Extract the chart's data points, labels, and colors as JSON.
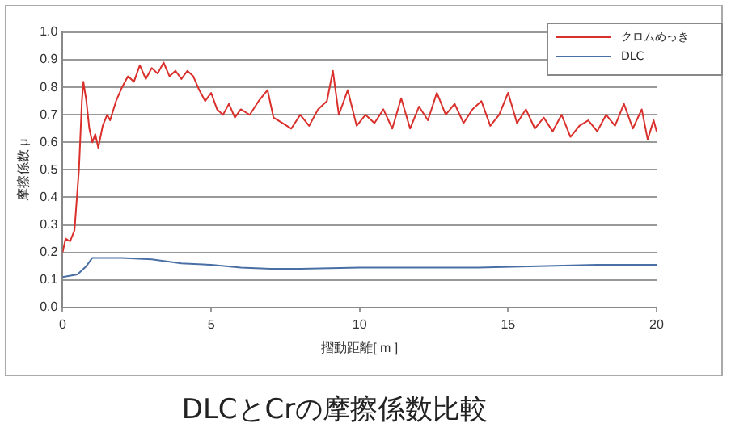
{
  "chart_data": {
    "type": "line",
    "title": "DLCとCrの摩擦係数比較",
    "xlabel": "摺動距離[ m ]",
    "ylabel": "摩擦係数 μ",
    "xlim": [
      0,
      20
    ],
    "xticks": [
      0,
      5,
      10,
      15,
      20
    ],
    "ylim": [
      0,
      1
    ],
    "yticks": [
      {
        "value": 0,
        "label": "0.0"
      },
      {
        "value": 0.1,
        "label": "0.1"
      },
      {
        "value": 0.2,
        "label": "0.2"
      },
      {
        "value": 0.3,
        "label": "0.3"
      },
      {
        "value": 0.4,
        "label": "0.4"
      },
      {
        "value": 0.5,
        "label": "0.5"
      },
      {
        "value": 0.6,
        "label": "0.6"
      },
      {
        "value": 0.7,
        "label": "0.7"
      },
      {
        "value": 0.8,
        "label": "0.8"
      },
      {
        "value": 0.9,
        "label": "0.9"
      },
      {
        "value": 1,
        "label": "1.0"
      }
    ],
    "grid": "y",
    "legend": "top right",
    "marker": "none",
    "line_style": "solid",
    "series": [
      {
        "name": "クロムめっき",
        "color": "#d9302c",
        "x": [
          0,
          0.1,
          0.25,
          0.4,
          0.55,
          0.65,
          0.7,
          0.8,
          0.9,
          1.0,
          1.1,
          1.2,
          1.35,
          1.5,
          1.6,
          1.8,
          2.0,
          2.2,
          2.4,
          2.6,
          2.8,
          3.0,
          3.2,
          3.4,
          3.6,
          3.8,
          4.0,
          4.2,
          4.4,
          4.6,
          4.8,
          5.0,
          5.2,
          5.4,
          5.6,
          5.8,
          6.0,
          6.3,
          6.6,
          6.9,
          7.1,
          7.4,
          7.7,
          8.0,
          8.3,
          8.6,
          8.9,
          9.1,
          9.3,
          9.6,
          9.9,
          10.2,
          10.5,
          10.8,
          11.1,
          11.4,
          11.7,
          12.0,
          12.3,
          12.6,
          12.9,
          13.2,
          13.5,
          13.8,
          14.1,
          14.4,
          14.7,
          15.0,
          15.3,
          15.6,
          15.9,
          16.2,
          16.5,
          16.8,
          17.1,
          17.4,
          17.7,
          18.0,
          18.3,
          18.6,
          18.9,
          19.2,
          19.5,
          19.7,
          19.9,
          20
        ],
        "values": [
          0.2,
          0.25,
          0.24,
          0.28,
          0.5,
          0.75,
          0.82,
          0.75,
          0.65,
          0.6,
          0.63,
          0.58,
          0.66,
          0.7,
          0.68,
          0.75,
          0.8,
          0.84,
          0.82,
          0.88,
          0.83,
          0.87,
          0.85,
          0.89,
          0.84,
          0.86,
          0.83,
          0.86,
          0.84,
          0.79,
          0.75,
          0.78,
          0.72,
          0.7,
          0.74,
          0.69,
          0.72,
          0.7,
          0.75,
          0.79,
          0.69,
          0.67,
          0.65,
          0.7,
          0.66,
          0.72,
          0.75,
          0.86,
          0.7,
          0.79,
          0.66,
          0.7,
          0.67,
          0.72,
          0.65,
          0.76,
          0.65,
          0.73,
          0.68,
          0.78,
          0.7,
          0.74,
          0.67,
          0.72,
          0.75,
          0.66,
          0.7,
          0.78,
          0.67,
          0.72,
          0.65,
          0.69,
          0.64,
          0.7,
          0.62,
          0.66,
          0.68,
          0.64,
          0.7,
          0.66,
          0.74,
          0.65,
          0.72,
          0.61,
          0.68,
          0.64
        ]
      },
      {
        "name": "DLC",
        "color": "#4a6fa5",
        "x": [
          0,
          0.5,
          0.8,
          1,
          2,
          3,
          4,
          5,
          6,
          7,
          8,
          10,
          12,
          14,
          16,
          18,
          20
        ],
        "values": [
          0.11,
          0.12,
          0.15,
          0.18,
          0.18,
          0.175,
          0.16,
          0.155,
          0.145,
          0.14,
          0.14,
          0.145,
          0.145,
          0.145,
          0.15,
          0.155,
          0.155
        ]
      }
    ]
  }
}
